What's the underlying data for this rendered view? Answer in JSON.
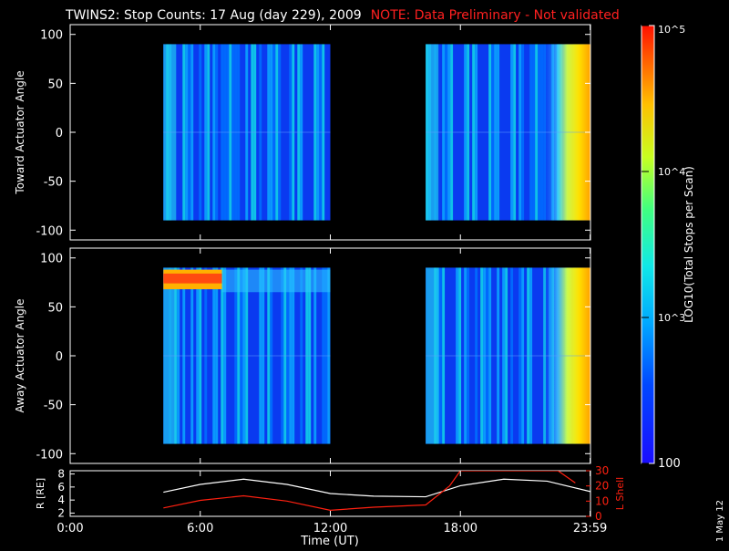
{
  "title": {
    "main": "TWINS2: Stop Counts: 17 Aug (day 229), 2009",
    "note": "NOTE: Data Preliminary - Not validated"
  },
  "datestamp": "1 May 12",
  "colors": {
    "background": "#000000",
    "axes": "#ffffff",
    "note": "#ff2020",
    "r_line": "#ffffff",
    "l_line": "#ff2010"
  },
  "chart_data": [
    {
      "type": "heatmap",
      "ylabel": "Toward Actuator Angle",
      "yticks": [
        100,
        50,
        0,
        -50,
        -100
      ],
      "ylim": [
        -110,
        110
      ],
      "xlim": [
        0,
        24
      ],
      "data_segments_hours": [
        [
          4.3,
          12.0
        ],
        [
          16.4,
          24.0
        ]
      ],
      "angle_range": [
        -90,
        90
      ],
      "description_levels": "mostly 10^3 (blue) with rising counts to ~10^4.5 (yellow/orange) after ~21:30 UT"
    },
    {
      "type": "heatmap",
      "ylabel": "Away Actuator Angle",
      "yticks": [
        100,
        50,
        0,
        -50,
        -100
      ],
      "ylim": [
        -110,
        110
      ],
      "xlim": [
        0,
        24
      ],
      "data_segments_hours": [
        [
          4.3,
          12.0
        ],
        [
          16.4,
          24.0
        ]
      ],
      "angle_range": [
        -90,
        90
      ],
      "description_levels": "high counts (red/orange) near +75-85 deg from 4:30 to 7:00 UT; yellow/orange after ~21:30 UT"
    },
    {
      "type": "line",
      "ylabel_left": "R [RE]",
      "ylabel_right": "L Shell",
      "xlabel": "Time (UT)",
      "xticks": [
        "0:00",
        "6:00",
        "12:00",
        "18:00",
        "23:59"
      ],
      "xtick_hours": [
        0,
        6,
        12,
        18,
        23.983
      ],
      "yticks_left": [
        2,
        4,
        6,
        8
      ],
      "yticks_right": [
        0,
        10,
        20,
        30
      ],
      "ylim_left": [
        1.5,
        8.5
      ],
      "ylim_right": [
        0,
        30
      ],
      "series": [
        {
          "name": "R [RE]",
          "x": [
            4.3,
            6,
            8,
            10,
            12,
            14,
            16.4,
            18,
            20,
            22,
            24
          ],
          "y": [
            5.2,
            6.4,
            7.2,
            6.4,
            5.0,
            4.6,
            4.5,
            6.2,
            7.2,
            6.9,
            5.3
          ]
        },
        {
          "name": "L Shell",
          "x": [
            4.3,
            6,
            8,
            10,
            12,
            14,
            16.4,
            17.5,
            18.0,
            22.5,
            23.3
          ],
          "y": [
            5.5,
            10.5,
            13.5,
            10.0,
            4.0,
            6.0,
            7.5,
            20.0,
            30.0,
            30.0,
            22.0
          ]
        }
      ]
    },
    {
      "type": "heatmap",
      "ylabel": "LOG10(Total Stops per Scan)",
      "colorbar_ticks": [
        "10^5",
        "10^4",
        "10^3",
        "100"
      ],
      "colorbar_range": [
        100,
        100000
      ]
    }
  ]
}
